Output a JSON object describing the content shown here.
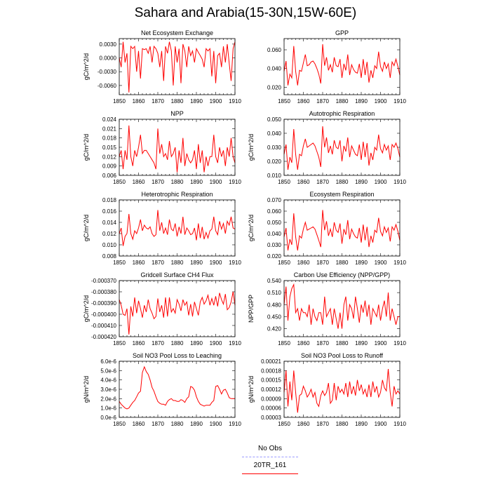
{
  "title": "Sahara and Arabia(15-30N,15W-60E)",
  "colors": {
    "model": "#ff0000",
    "obs": "#9999ff",
    "axis": "#000000"
  },
  "legend": [
    {
      "label": "No Obs",
      "color": "#9999ff",
      "style": "dashed"
    },
    {
      "label": "20TR_161",
      "color": "#ff0000",
      "style": "solid"
    }
  ],
  "chart_data": [
    {
      "type": "line",
      "title": "Net Ecosystem Exchange",
      "ylabel": "gC/m^2/d",
      "xlim": [
        1850,
        1910
      ],
      "ylim": [
        -0.008,
        0.0042
      ],
      "xticks": [
        "1850",
        "1860",
        "1870",
        "1880",
        "1890",
        "1900",
        "1910"
      ],
      "yticks": [
        "-0.0060",
        "-0.0030",
        "0.0000",
        "0.0030"
      ],
      "ytick_values": [
        -0.006,
        -0.003,
        0.0,
        0.003
      ],
      "series": [
        {
          "x_start": 1850,
          "values": [
            0.0,
            -0.002,
            0.0035,
            -0.001,
            0.001,
            -0.0075,
            0.0025,
            0.002,
            0.0025,
            -0.003,
            0.0015,
            -0.0045,
            0.002,
            0.0018,
            0.002,
            0.001,
            0.0025,
            -0.001,
            0.0025,
            0.002,
            0.001,
            -0.002,
            0.0015,
            -0.005,
            0.0025,
            0.001,
            0.0035,
            0.0015,
            -0.006,
            0.0025,
            -0.001,
            0.002,
            -0.0055,
            0.003,
            0.0015,
            -0.002,
            0.0025,
            0.0005,
            0.0015,
            -0.001,
            0.002,
            0.0012,
            0.0005,
            -0.0003,
            -0.002,
            0.002,
            0.0015,
            0.002,
            -0.004,
            0.0015,
            -0.0055,
            0.0005,
            0.001,
            -0.002,
            0.0025,
            -0.001,
            0.003,
            -0.0012,
            -0.005,
            0.002,
            0.0035
          ]
        }
      ]
    },
    {
      "type": "line",
      "title": "GPP",
      "ylabel": "",
      "xlim": [
        1850,
        1910
      ],
      "ylim": [
        0.012,
        0.072
      ],
      "xticks": [
        "1850",
        "1860",
        "1870",
        "1880",
        "1890",
        "1900",
        "1910"
      ],
      "yticks": [
        "0.020",
        "0.040",
        "0.060"
      ],
      "ytick_values": [
        0.02,
        0.04,
        0.06
      ],
      "series": [
        {
          "x_start": 1850,
          "values": [
            0.037,
            0.048,
            0.022,
            0.034,
            0.03,
            0.064,
            0.037,
            0.022,
            0.038,
            0.037,
            0.046,
            0.055,
            0.043,
            0.044,
            0.047,
            0.048,
            0.045,
            0.04,
            0.034,
            0.024,
            0.066,
            0.043,
            0.052,
            0.038,
            0.044,
            0.036,
            0.052,
            0.043,
            0.042,
            0.05,
            0.03,
            0.045,
            0.038,
            0.055,
            0.033,
            0.044,
            0.039,
            0.036,
            0.035,
            0.045,
            0.03,
            0.05,
            0.033,
            0.047,
            0.025,
            0.038,
            0.03,
            0.043,
            0.04,
            0.058,
            0.042,
            0.037,
            0.047,
            0.04,
            0.045,
            0.03,
            0.047,
            0.043,
            0.05,
            0.042,
            0.033
          ]
        }
      ]
    },
    {
      "type": "line",
      "title": "NPP",
      "ylabel": "gC/m^2/d",
      "xlim": [
        1850,
        1910
      ],
      "ylim": [
        0.006,
        0.024
      ],
      "xticks": [
        "1850",
        "1860",
        "1870",
        "1880",
        "1890",
        "1900",
        "1910"
      ],
      "yticks": [
        "0.006",
        "0.009",
        "0.012",
        "0.015",
        "0.018",
        "0.021",
        "0.024"
      ],
      "ytick_values": [
        0.006,
        0.009,
        0.012,
        0.015,
        0.018,
        0.021,
        0.024
      ],
      "series": [
        {
          "x_start": 1850,
          "values": [
            0.012,
            0.014,
            0.008,
            0.014,
            0.011,
            0.022,
            0.012,
            0.009,
            0.014,
            0.012,
            0.015,
            0.019,
            0.013,
            0.014,
            0.014,
            0.013,
            0.012,
            0.011,
            0.01,
            0.008,
            0.021,
            0.013,
            0.016,
            0.012,
            0.013,
            0.011,
            0.017,
            0.012,
            0.013,
            0.015,
            0.007,
            0.014,
            0.01,
            0.018,
            0.009,
            0.013,
            0.011,
            0.01,
            0.011,
            0.014,
            0.008,
            0.016,
            0.01,
            0.014,
            0.007,
            0.012,
            0.009,
            0.012,
            0.012,
            0.019,
            0.012,
            0.01,
            0.015,
            0.012,
            0.014,
            0.009,
            0.015,
            0.012,
            0.018,
            0.012,
            0.01
          ]
        }
      ]
    },
    {
      "type": "line",
      "title": "Autotrophic Respiration",
      "ylabel": "gC/m^2/d",
      "xlim": [
        1850,
        1910
      ],
      "ylim": [
        0.01,
        0.05
      ],
      "xticks": [
        "1850",
        "1860",
        "1870",
        "1880",
        "1890",
        "1900",
        "1910"
      ],
      "yticks": [
        "0.010",
        "0.020",
        "0.030",
        "0.040",
        "0.050"
      ],
      "ytick_values": [
        0.01,
        0.02,
        0.03,
        0.04,
        0.05
      ],
      "series": [
        {
          "x_start": 1850,
          "values": [
            0.025,
            0.032,
            0.014,
            0.023,
            0.019,
            0.043,
            0.025,
            0.014,
            0.025,
            0.024,
            0.031,
            0.036,
            0.03,
            0.031,
            0.032,
            0.033,
            0.031,
            0.027,
            0.023,
            0.016,
            0.045,
            0.03,
            0.037,
            0.026,
            0.031,
            0.025,
            0.035,
            0.03,
            0.029,
            0.035,
            0.02,
            0.031,
            0.027,
            0.037,
            0.023,
            0.031,
            0.028,
            0.025,
            0.024,
            0.032,
            0.021,
            0.034,
            0.023,
            0.033,
            0.017,
            0.026,
            0.021,
            0.03,
            0.028,
            0.039,
            0.029,
            0.026,
            0.032,
            0.028,
            0.031,
            0.021,
            0.032,
            0.03,
            0.033,
            0.029,
            0.023
          ]
        }
      ]
    },
    {
      "type": "line",
      "title": "Heterotrophic Respiration",
      "ylabel": "gC/m^2/d",
      "xlim": [
        1850,
        1910
      ],
      "ylim": [
        0.008,
        0.018
      ],
      "xticks": [
        "1850",
        "1860",
        "1870",
        "1880",
        "1890",
        "1900",
        "1910"
      ],
      "yticks": [
        "0.008",
        "0.010",
        "0.012",
        "0.014",
        "0.016",
        "0.018"
      ],
      "ytick_values": [
        0.008,
        0.01,
        0.012,
        0.014,
        0.016,
        0.018
      ],
      "series": [
        {
          "x_start": 1850,
          "values": [
            0.012,
            0.013,
            0.0098,
            0.0115,
            0.012,
            0.0155,
            0.012,
            0.011,
            0.0125,
            0.012,
            0.013,
            0.0145,
            0.0125,
            0.0135,
            0.013,
            0.0128,
            0.0132,
            0.012,
            0.0115,
            0.0118,
            0.0162,
            0.0125,
            0.014,
            0.012,
            0.013,
            0.0118,
            0.0145,
            0.0128,
            0.0125,
            0.0138,
            0.0115,
            0.0132,
            0.012,
            0.015,
            0.0118,
            0.013,
            0.0125,
            0.0118,
            0.012,
            0.013,
            0.0108,
            0.0138,
            0.0112,
            0.0132,
            0.011,
            0.0122,
            0.0112,
            0.0125,
            0.0128,
            0.015,
            0.0125,
            0.0118,
            0.0142,
            0.0128,
            0.0138,
            0.012,
            0.0142,
            0.0135,
            0.015,
            0.013,
            0.0128
          ]
        }
      ]
    },
    {
      "type": "line",
      "title": "Ecosystem Respiration",
      "ylabel": "gC/m^2/d",
      "xlim": [
        1850,
        1910
      ],
      "ylim": [
        0.02,
        0.07
      ],
      "xticks": [
        "1850",
        "1860",
        "1870",
        "1880",
        "1890",
        "1900",
        "1910"
      ],
      "yticks": [
        "0.020",
        "0.030",
        "0.040",
        "0.050",
        "0.060",
        "0.070"
      ],
      "ytick_values": [
        0.02,
        0.03,
        0.04,
        0.05,
        0.06,
        0.07
      ],
      "series": [
        {
          "x_start": 1850,
          "values": [
            0.037,
            0.045,
            0.025,
            0.035,
            0.03,
            0.058,
            0.037,
            0.025,
            0.038,
            0.036,
            0.044,
            0.05,
            0.043,
            0.044,
            0.045,
            0.046,
            0.044,
            0.039,
            0.034,
            0.028,
            0.061,
            0.043,
            0.051,
            0.038,
            0.044,
            0.037,
            0.05,
            0.043,
            0.041,
            0.049,
            0.031,
            0.044,
            0.039,
            0.052,
            0.035,
            0.044,
            0.04,
            0.037,
            0.036,
            0.045,
            0.032,
            0.048,
            0.034,
            0.046,
            0.028,
            0.038,
            0.032,
            0.043,
            0.041,
            0.054,
            0.042,
            0.038,
            0.046,
            0.041,
            0.045,
            0.033,
            0.046,
            0.043,
            0.048,
            0.042,
            0.034
          ]
        }
      ]
    },
    {
      "type": "line",
      "title": "Gridcell Surface CH4 Flux",
      "ylabel": "gC/m^2/d",
      "xlim": [
        1850,
        1910
      ],
      "ylim": [
        -0.00042,
        -0.00037
      ],
      "xticks": [
        "1850",
        "1860",
        "1870",
        "1880",
        "1890",
        "1900",
        "1910"
      ],
      "yticks": [
        "-0.000420",
        "-0.000410",
        "-0.000400",
        "-0.000390",
        "-0.000380",
        "-0.000370"
      ],
      "ytick_values": [
        -0.00042,
        -0.00041,
        -0.0004,
        -0.00039,
        -0.00038,
        -0.00037
      ],
      "series": [
        {
          "x_start": 1850,
          "values": [
            -0.000387,
            -0.000392,
            -0.0004,
            -0.000401,
            -0.000395,
            -0.000418,
            -0.000393,
            -0.000402,
            -0.000385,
            -0.000399,
            -0.000388,
            -0.000395,
            -0.000403,
            -0.000392,
            -0.000398,
            -0.000387,
            -0.000395,
            -0.000399,
            -0.000404,
            -0.000402,
            -0.000386,
            -0.000398,
            -0.000392,
            -0.000403,
            -0.000385,
            -0.000402,
            -0.000385,
            -0.000398,
            -0.000395,
            -0.000399,
            -0.000387,
            -0.000391,
            -0.000397,
            -0.000387,
            -0.000392,
            -0.000389,
            -0.000401,
            -0.000391,
            -0.000402,
            -0.000389,
            -0.000395,
            -0.000401,
            -0.000389,
            -0.000385,
            -0.000391,
            -0.000388,
            -0.000383,
            -0.000392,
            -0.000386,
            -0.000392,
            -0.000384,
            -0.000393,
            -0.000381,
            -0.000387,
            -0.000391,
            -0.000382,
            -0.000396,
            -0.000394,
            -0.000389,
            -0.00038,
            -0.000392
          ]
        }
      ]
    },
    {
      "type": "line",
      "title": "Carbon Use Efficiency (NPP/GPP)",
      "ylabel": "NPP/GPP",
      "xlim": [
        1850,
        1910
      ],
      "ylim": [
        0.4,
        0.54
      ],
      "xticks": [
        "1850",
        "1860",
        "1870",
        "1880",
        "1890",
        "1900",
        "1910"
      ],
      "yticks": [
        "0.420",
        "0.450",
        "0.480",
        "0.510",
        "0.540"
      ],
      "ytick_values": [
        0.42,
        0.45,
        0.48,
        0.51,
        0.54
      ],
      "series": [
        {
          "x_start": 1850,
          "values": [
            0.48,
            0.525,
            0.44,
            0.5,
            0.52,
            0.53,
            0.46,
            0.47,
            0.44,
            0.47,
            0.46,
            0.46,
            0.45,
            0.48,
            0.43,
            0.47,
            0.45,
            0.44,
            0.46,
            0.46,
            0.43,
            0.5,
            0.45,
            0.46,
            0.47,
            0.43,
            0.47,
            0.445,
            0.42,
            0.46,
            0.42,
            0.48,
            0.5,
            0.44,
            0.48,
            0.47,
            0.445,
            0.5,
            0.47,
            0.435,
            0.48,
            0.46,
            0.49,
            0.45,
            0.48,
            0.43,
            0.47,
            0.46,
            0.45,
            0.48,
            0.44,
            0.47,
            0.49,
            0.45,
            0.51,
            0.44,
            0.47,
            0.45,
            0.43,
            0.45,
            0.45
          ]
        }
      ]
    },
    {
      "type": "line",
      "title": "Soil NO3 Pool Loss to Leaching",
      "ylabel": "gN/m^2/d",
      "xlim": [
        1850,
        1910
      ],
      "ylim": [
        0.0,
        6e-06
      ],
      "xticks": [
        "1850",
        "1860",
        "1870",
        "1880",
        "1890",
        "1900",
        "1910"
      ],
      "yticks": [
        "0.0e-6",
        "1.0e-6",
        "2.0e-6",
        "3.0e-6",
        "4.0e-6",
        "5.0e-6",
        "6.0e-6"
      ],
      "ytick_values": [
        0.0,
        1e-06,
        2e-06,
        3e-06,
        4e-06,
        5e-06,
        6e-06
      ],
      "series": [
        {
          "x_start": 1850,
          "values": [
            1.7e-06,
            1.4e-06,
            1.2e-06,
            1e-06,
            9e-07,
            1e-06,
            1.3e-06,
            1.6e-06,
            1.8e-06,
            2.2e-06,
            2.6e-06,
            2.8e-06,
            4.8e-06,
            5.4e-06,
            4.9e-06,
            4.6e-06,
            4e-06,
            3.2e-06,
            2.8e-06,
            2.2e-06,
            1.7e-06,
            1.5e-06,
            1.4e-06,
            1.4e-06,
            1.3e-06,
            1.7e-06,
            1.9e-06,
            2e-06,
            1.8e-06,
            1.8e-06,
            1.7e-06,
            1.7e-06,
            1.9e-06,
            1.8e-06,
            1.6e-06,
            2e-06,
            2.2e-06,
            3.3e-06,
            3.2e-06,
            2.9e-06,
            2.2e-06,
            1.7e-06,
            1.4e-06,
            1.3e-06,
            1.2e-06,
            1.3e-06,
            1.3e-06,
            1.3e-06,
            1.6e-06,
            1.8e-06,
            3.3e-06,
            3.4e-06,
            3e-06,
            2.5e-06,
            2.9e-06,
            3e-06,
            2.6e-06,
            2.1e-06,
            2e-06,
            2e-06,
            2e-06
          ]
        }
      ]
    },
    {
      "type": "line",
      "title": "Soil NO3 Pool Loss to Runoff",
      "ylabel": "gN/m^2/d",
      "xlim": [
        1850,
        1910
      ],
      "ylim": [
        3e-05,
        0.00021
      ],
      "xticks": [
        "1850",
        "1860",
        "1870",
        "1880",
        "1890",
        "1900",
        "1910"
      ],
      "yticks": [
        "0.00003",
        "0.00006",
        "0.00009",
        "0.00012",
        "0.00015",
        "0.00018",
        "0.00021"
      ],
      "ytick_values": [
        3e-05,
        6e-05,
        9e-05,
        0.00012,
        0.00015,
        0.00018,
        0.00021
      ],
      "series": [
        {
          "x_start": 1850,
          "values": [
            0.00011,
            0.00018,
            6.5e-05,
            0.000145,
            8.5e-05,
            0.00018,
            0.00011,
            4.5e-05,
            0.0001,
            0.000105,
            0.00013,
            0.000115,
            9.5e-05,
            0.000105,
            0.00012,
            9.5e-05,
            0.00011,
            7.5e-05,
            6.5e-05,
            0.0001,
            0.000115,
            0.0001,
            0.00011,
            0.00014,
            7.5e-05,
            8.5e-05,
            0.00014,
            8.5e-05,
            0.00013,
            0.00011,
            0.00012,
            0.000105,
            0.00014,
            9.5e-05,
            0.000145,
            0.000105,
            0.00013,
            0.0001,
            0.00015,
            0.000115,
            0.000135,
            0.000105,
            0.00012,
            9.5e-05,
            0.000135,
            9.5e-05,
            0.000145,
            0.00011,
            0.00013,
            9.5e-05,
            0.00011,
            0.00015,
            0.000125,
            0.000115,
            0.000185,
            0.00011,
            6.5e-05,
            0.00013,
            0.000105,
            0.000115,
            0.000105
          ]
        }
      ]
    }
  ]
}
